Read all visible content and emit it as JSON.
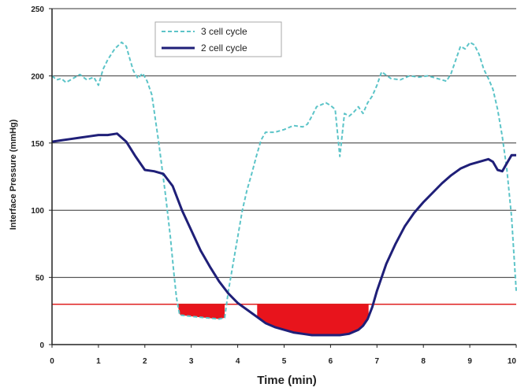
{
  "chart_data": {
    "type": "line",
    "xlabel": "Time (min)",
    "ylabel": "Interface Pressure (mmHg)",
    "xlim": [
      0,
      10
    ],
    "ylim": [
      0,
      250
    ],
    "x_ticks": [
      "0",
      "1",
      "2",
      "3",
      "4",
      "5",
      "6",
      "7",
      "8",
      "9",
      "10"
    ],
    "y_ticks": [
      "0",
      "50",
      "100",
      "150",
      "200",
      "250"
    ],
    "grid": "horizontal",
    "legend_position": "top-left",
    "threshold": {
      "value": 30,
      "color": "#e02020"
    },
    "shaded_regions": [
      {
        "x_start": 2.72,
        "x_end": 3.72,
        "series": "3 cell cycle",
        "color": "#e8141c"
      },
      {
        "x_start": 4.42,
        "x_end": 6.82,
        "series": "2 cell cycle",
        "color": "#e8141c"
      }
    ],
    "series": [
      {
        "name": "3 cell cycle",
        "style": "dashed",
        "color": "#5cc4c8",
        "x": [
          0,
          0.1,
          0.2,
          0.3,
          0.45,
          0.6,
          0.75,
          0.9,
          1.0,
          1.1,
          1.2,
          1.35,
          1.5,
          1.6,
          1.68,
          1.75,
          1.85,
          1.95,
          2.05,
          2.15,
          2.3,
          2.45,
          2.55,
          2.62,
          2.68,
          2.75,
          3.0,
          3.3,
          3.6,
          3.72,
          3.8,
          3.9,
          4.0,
          4.1,
          4.2,
          4.3,
          4.4,
          4.5,
          4.6,
          4.8,
          5.0,
          5.2,
          5.4,
          5.5,
          5.6,
          5.7,
          5.9,
          6.0,
          6.1,
          6.2,
          6.3,
          6.4,
          6.5,
          6.6,
          6.7,
          6.8,
          6.9,
          7.0,
          7.1,
          7.3,
          7.5,
          7.7,
          7.9,
          8.1,
          8.3,
          8.5,
          8.6,
          8.7,
          8.8,
          8.9,
          9.0,
          9.1,
          9.2,
          9.3,
          9.4,
          9.5,
          9.6,
          9.7,
          9.8,
          9.9,
          10.0
        ],
        "y": [
          200,
          197,
          198,
          195,
          198,
          201,
          197,
          199,
          193,
          205,
          212,
          220,
          225,
          222,
          212,
          204,
          198,
          202,
          196,
          186,
          150,
          110,
          80,
          55,
          35,
          22,
          21,
          20,
          19,
          20,
          40,
          60,
          80,
          100,
          115,
          127,
          140,
          152,
          158,
          158,
          160,
          163,
          162,
          164,
          170,
          177,
          180,
          178,
          175,
          140,
          172,
          170,
          173,
          177,
          172,
          180,
          185,
          193,
          203,
          198,
          197,
          200,
          199,
          200,
          198,
          196,
          202,
          212,
          222,
          220,
          225,
          223,
          216,
          205,
          198,
          190,
          175,
          155,
          130,
          95,
          40
        ]
      },
      {
        "name": "2 cell cycle",
        "style": "solid",
        "color": "#1f1f78",
        "x": [
          0,
          0.2,
          0.4,
          0.6,
          0.8,
          1.0,
          1.2,
          1.4,
          1.6,
          1.8,
          2.0,
          2.2,
          2.4,
          2.6,
          2.8,
          3.0,
          3.2,
          3.4,
          3.6,
          3.8,
          4.0,
          4.2,
          4.4,
          4.6,
          4.8,
          5.0,
          5.2,
          5.4,
          5.6,
          5.8,
          6.0,
          6.2,
          6.4,
          6.6,
          6.7,
          6.8,
          6.9,
          7.0,
          7.2,
          7.4,
          7.6,
          7.8,
          8.0,
          8.2,
          8.4,
          8.6,
          8.8,
          9.0,
          9.2,
          9.4,
          9.5,
          9.6,
          9.7,
          9.8,
          9.9,
          10.0
        ],
        "y": [
          151,
          152,
          153,
          154,
          155,
          156,
          156,
          157,
          151,
          140,
          130,
          129,
          127,
          118,
          100,
          85,
          70,
          58,
          47,
          38,
          31,
          26,
          21,
          16,
          13,
          11,
          9,
          8,
          7,
          7,
          7,
          7,
          8,
          11,
          14,
          19,
          28,
          40,
          60,
          75,
          88,
          98,
          106,
          113,
          120,
          126,
          131,
          134,
          136,
          138,
          136,
          130,
          129,
          135,
          141,
          141
        ]
      }
    ]
  }
}
